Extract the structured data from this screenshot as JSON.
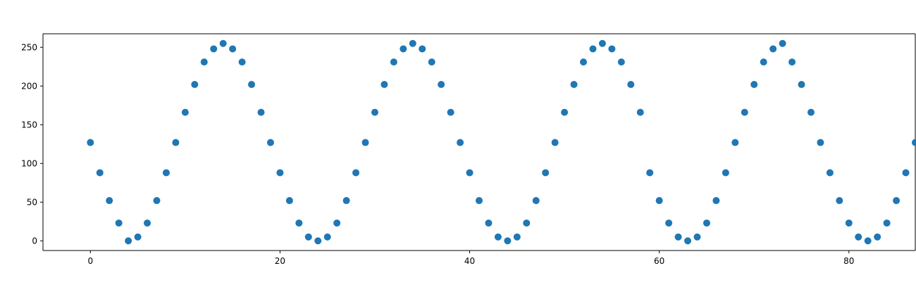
{
  "chart_data": {
    "type": "scatter",
    "title": "",
    "xlabel": "",
    "ylabel": "",
    "xlim": [
      -5,
      87
    ],
    "ylim": [
      -12.5,
      267.5
    ],
    "xticks": [
      0,
      20,
      40,
      60,
      80
    ],
    "xtick_labels": [
      "0",
      "20",
      "40",
      "60",
      "80"
    ],
    "yticks": [
      0,
      50,
      100,
      150,
      200,
      250
    ],
    "ytick_labels": [
      "0",
      "50",
      "100",
      "150",
      "200",
      "250"
    ],
    "grid": false,
    "marker_color": "#1f77b4",
    "series": [
      {
        "x": [
          0,
          1,
          2,
          3,
          4,
          5,
          6,
          7,
          8,
          9,
          10,
          11,
          12,
          13,
          14,
          15,
          16,
          17,
          18,
          19,
          20,
          21,
          22,
          23,
          24,
          25,
          26,
          27,
          28,
          29,
          30,
          31,
          32,
          33,
          34,
          35,
          36,
          37,
          38,
          39,
          40,
          41,
          42,
          43,
          44,
          45,
          46,
          47,
          48,
          49,
          50,
          51,
          52,
          53,
          54,
          55,
          56,
          57,
          58,
          59,
          60,
          61,
          62,
          63,
          64,
          65,
          66,
          67,
          68,
          69,
          70,
          71,
          72,
          73,
          74,
          75,
          76,
          77,
          78,
          79,
          80,
          81,
          82,
          83,
          84,
          85,
          86,
          87
        ],
        "y": [
          127,
          88,
          52,
          23,
          0,
          5,
          23,
          52,
          88,
          127,
          166,
          202,
          231,
          248,
          255,
          248,
          231,
          202,
          166,
          127,
          88,
          52,
          23,
          5,
          0,
          5,
          23,
          52,
          88,
          127,
          166,
          202,
          231,
          248,
          255,
          248,
          231,
          202,
          166,
          127,
          88,
          52,
          23,
          5,
          0,
          5,
          23,
          52,
          88,
          127,
          166,
          202,
          231,
          248,
          255,
          248,
          231,
          202,
          166,
          88,
          52,
          23,
          5,
          0,
          5,
          23,
          52,
          88,
          127,
          166,
          202,
          231,
          248,
          255,
          231,
          202,
          166,
          127,
          88,
          52,
          23,
          5,
          0,
          5,
          23,
          52,
          88,
          127
        ]
      }
    ]
  }
}
